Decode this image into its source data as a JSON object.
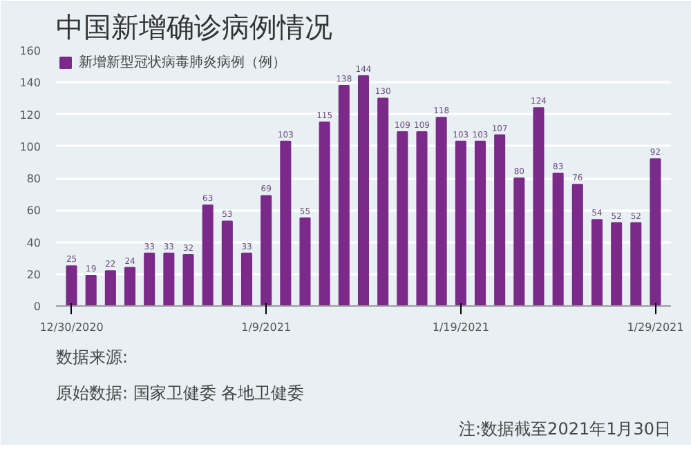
{
  "chart_data": {
    "type": "bar",
    "title": "中国新增确诊病例情况",
    "categories": [
      "12/30/2020",
      null,
      null,
      null,
      null,
      null,
      null,
      null,
      null,
      null,
      "1/9/2021",
      null,
      null,
      null,
      null,
      null,
      null,
      null,
      null,
      null,
      "1/19/2021",
      null,
      null,
      null,
      null,
      null,
      null,
      null,
      null,
      null,
      "1/29/2021"
    ],
    "series": [
      {
        "name": "新增新型冠状病毒肺炎病例（例）",
        "color": "#7b2a8a",
        "values": [
          25,
          19,
          22,
          24,
          33,
          33,
          32,
          63,
          53,
          33,
          69,
          103,
          55,
          115,
          138,
          144,
          130,
          109,
          109,
          118,
          103,
          103,
          107,
          80,
          124,
          83,
          76,
          54,
          52,
          52,
          92
        ]
      }
    ],
    "ylim": [
      0,
      160
    ],
    "yticks": [
      0,
      20,
      40,
      60,
      80,
      100,
      120,
      140,
      160
    ],
    "grid": "y",
    "legend": "top left",
    "data_labels": true,
    "annotations": [
      "数据来源:",
      "原始数据: 国家卫健委 各地卫健委",
      "注:数据截至2021年1月30日"
    ]
  }
}
